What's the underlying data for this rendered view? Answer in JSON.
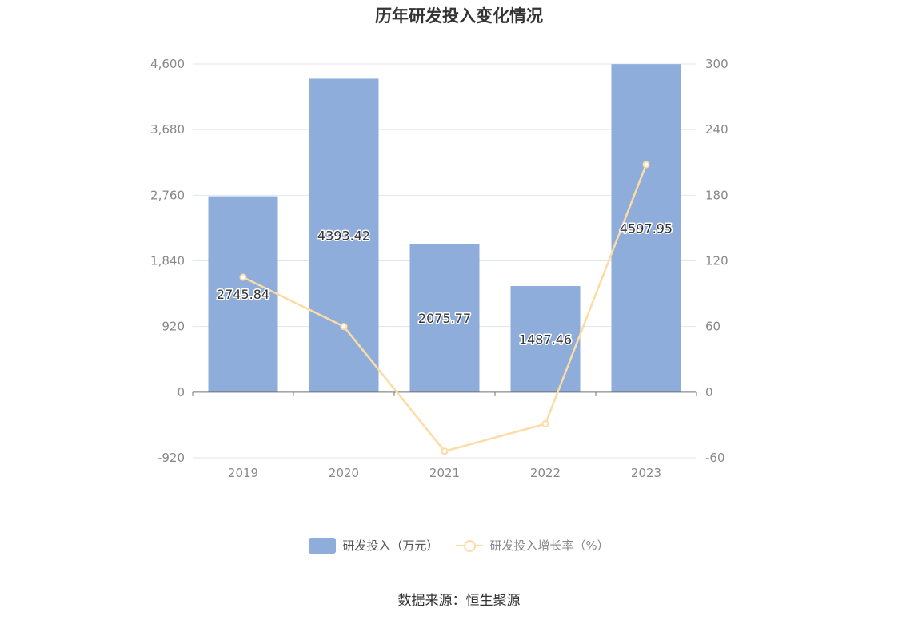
{
  "chart_data": {
    "type": "bar",
    "title": "历年研发投入变化情况",
    "categories": [
      "2019",
      "2020",
      "2021",
      "2022",
      "2023"
    ],
    "series": [
      {
        "name": "研发投入（万元）",
        "type": "bar",
        "axis": "left",
        "values": [
          2745.84,
          4393.42,
          2075.77,
          1487.46,
          4597.95
        ],
        "labels": [
          "2745.84",
          "4393.42",
          "2075.77",
          "1487.46",
          "4597.95"
        ]
      },
      {
        "name": "研发投入增长率（%）",
        "type": "line",
        "axis": "right",
        "values": [
          105,
          60,
          -54,
          -29,
          208
        ]
      }
    ],
    "left_axis": {
      "ylim": [
        -920,
        4600
      ],
      "ticks": [
        "-920",
        "0",
        "920",
        "1,840",
        "2,760",
        "3,680",
        "4,600"
      ]
    },
    "right_axis": {
      "ylim": [
        -60,
        300
      ],
      "ticks": [
        "-60",
        "0",
        "60",
        "120",
        "180",
        "240",
        "300"
      ]
    },
    "grid": true,
    "legend": "bottom-center",
    "colors": {
      "bar": "#8eaddb",
      "line": "#fcdca4"
    }
  },
  "footer": {
    "source": "数据来源：恒生聚源"
  }
}
